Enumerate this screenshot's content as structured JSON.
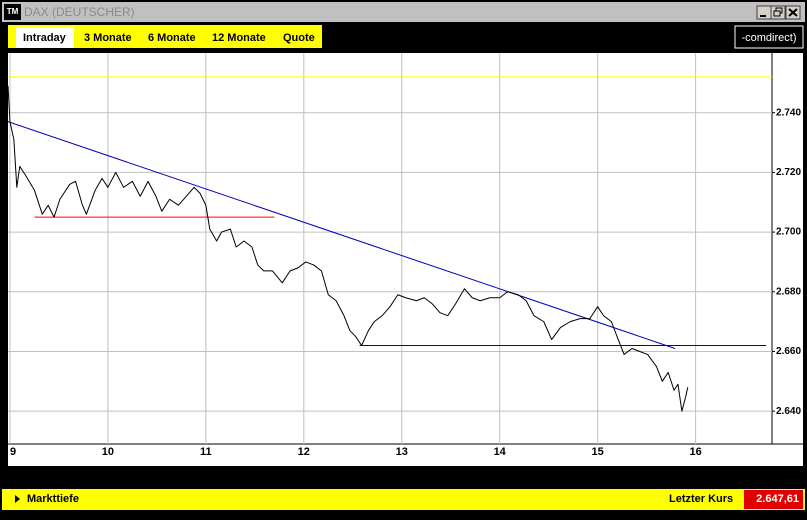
{
  "window": {
    "icon": "TM",
    "title": "DAX (DEUTSCHER)"
  },
  "tabs": [
    "Intraday",
    "3 Monate",
    "6 Monate",
    "12 Monate",
    "Quote"
  ],
  "logo": "-comdirect)",
  "chart_data": {
    "type": "line",
    "x": [
      8.98,
      9.0,
      9.04,
      9.07,
      9.1,
      9.16,
      9.25,
      9.33,
      9.39,
      9.45,
      9.51,
      9.61,
      9.67,
      9.74,
      9.78,
      9.87,
      9.94,
      10.0,
      10.08,
      10.16,
      10.25,
      10.33,
      10.41,
      10.49,
      10.55,
      10.63,
      10.72,
      10.8,
      10.88,
      10.94,
      11.0,
      11.04,
      11.11,
      11.16,
      11.25,
      11.31,
      11.39,
      11.47,
      11.53,
      11.59,
      11.68,
      11.78,
      11.86,
      11.94,
      12.02,
      12.1,
      12.18,
      12.25,
      12.33,
      12.41,
      12.47,
      12.53,
      12.59,
      12.66,
      12.72,
      12.8,
      12.88,
      12.96,
      13.04,
      13.15,
      13.23,
      13.31,
      13.39,
      13.47,
      13.55,
      13.64,
      13.72,
      13.8,
      13.9,
      14.0,
      14.08,
      14.19,
      14.27,
      14.35,
      14.45,
      14.53,
      14.62,
      14.72,
      14.82,
      14.92,
      15.0,
      15.06,
      15.14,
      15.21,
      15.27,
      15.35,
      15.43,
      15.51,
      15.6,
      15.66,
      15.72,
      15.78,
      15.82,
      15.86,
      15.9,
      15.92
    ],
    "series": [
      {
        "color": "#000000",
        "values": [
          2.749,
          2.737,
          2.731,
          2.715,
          2.722,
          2.719,
          2.714,
          2.706,
          2.709,
          2.705,
          2.711,
          2.716,
          2.717,
          2.709,
          2.706,
          2.714,
          2.718,
          2.715,
          2.72,
          2.715,
          2.717,
          2.712,
          2.717,
          2.712,
          2.707,
          2.711,
          2.709,
          2.712,
          2.715,
          2.713,
          2.709,
          2.701,
          2.697,
          2.7,
          2.701,
          2.695,
          2.697,
          2.695,
          2.689,
          2.687,
          2.687,
          2.683,
          2.687,
          2.688,
          2.69,
          2.689,
          2.687,
          2.679,
          2.677,
          2.672,
          2.667,
          2.665,
          2.662,
          2.667,
          2.67,
          2.672,
          2.675,
          2.679,
          2.678,
          2.677,
          2.678,
          2.676,
          2.673,
          2.672,
          2.676,
          2.681,
          2.678,
          2.677,
          2.678,
          2.678,
          2.68,
          2.679,
          2.677,
          2.672,
          2.67,
          2.664,
          2.668,
          2.67,
          2.671,
          2.671,
          2.675,
          2.672,
          2.67,
          2.664,
          2.659,
          2.661,
          2.66,
          2.659,
          2.655,
          2.65,
          2.653,
          2.647,
          2.649,
          2.64,
          2.645,
          2.648
        ]
      }
    ],
    "lines": [
      {
        "color": "#ffff00",
        "x": [
          8.98,
          16.78
        ],
        "y": [
          2.752,
          2.752
        ]
      },
      {
        "color": "#ff0000",
        "x": [
          9.25,
          11.7
        ],
        "y": [
          2.705,
          2.705
        ]
      },
      {
        "color": "#0000c0",
        "x": [
          8.98,
          15.79
        ],
        "y": [
          2.737,
          2.661
        ]
      },
      {
        "color": "#0000c0",
        "x": [
          12.57,
          16.72
        ],
        "y": [
          2.662,
          2.662
        ]
      }
    ],
    "xlim": [
      8.98,
      16.78
    ],
    "xticks": [
      9,
      10,
      11,
      12,
      13,
      14,
      15,
      16
    ],
    "ylim": [
      2.629,
      2.76
    ],
    "yticks": [
      {
        "value": 2.64,
        "label": "2.640"
      },
      {
        "value": 2.66,
        "label": "2.660"
      },
      {
        "value": 2.68,
        "label": "2.680"
      },
      {
        "value": 2.7,
        "label": "2.700"
      },
      {
        "value": 2.72,
        "label": "2.720"
      },
      {
        "value": 2.74,
        "label": "2.740"
      }
    ],
    "grid": true
  },
  "footer": {
    "link": "Markttiefe",
    "last_label": "Letzter Kurs",
    "last_value": "2.647,61"
  }
}
